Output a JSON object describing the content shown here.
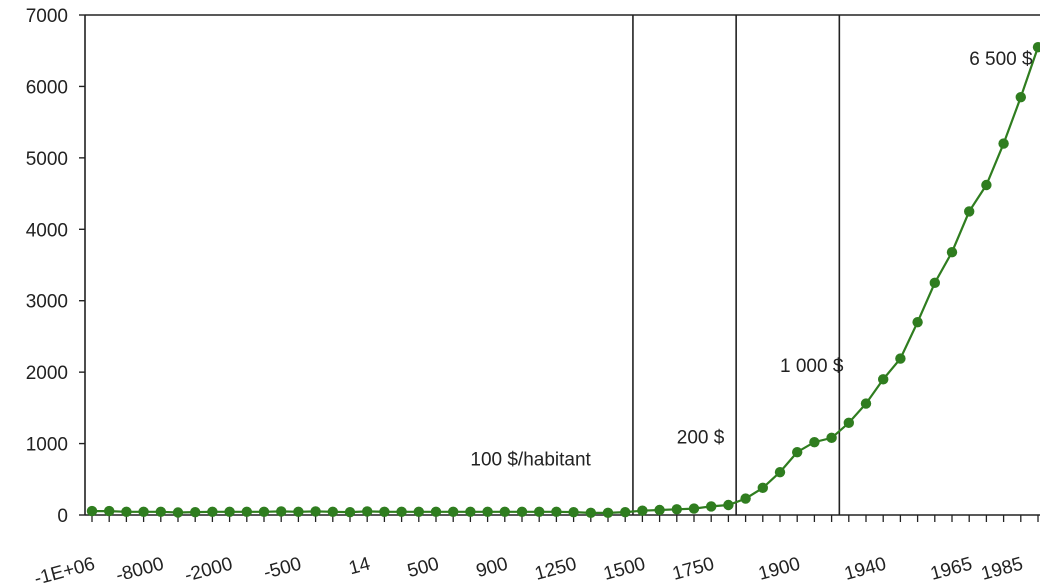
{
  "chart_data": {
    "type": "line",
    "title": "",
    "xlabel": "",
    "ylabel": "",
    "ylim": [
      0,
      7000
    ],
    "yticks": [
      0,
      1000,
      2000,
      3000,
      4000,
      5000,
      6000,
      7000
    ],
    "grid": false,
    "legend": "none",
    "color": "#2f7d1f",
    "xtick_labels": [
      "-1E+06",
      "-8000",
      "-2000",
      "-500",
      "14",
      "500",
      "900",
      "1250",
      "1500",
      "1750",
      "1900",
      "1940",
      "1965",
      "1985"
    ],
    "series": [
      {
        "values": [
          55,
          55,
          45,
          45,
          45,
          35,
          40,
          45,
          45,
          45,
          45,
          50,
          45,
          50,
          45,
          40,
          50,
          45,
          45,
          45,
          45,
          45,
          45,
          45,
          45,
          45,
          45,
          45,
          40,
          30,
          30,
          40,
          60,
          70,
          80,
          90,
          120,
          140,
          230,
          380,
          600,
          880,
          1020,
          1080,
          1290,
          1560,
          1900,
          2190,
          2700,
          3250,
          3680,
          4250,
          4620,
          5200,
          5850,
          6550
        ]
      }
    ],
    "dividers_after_index": [
      31,
      37,
      43
    ],
    "annotations": [
      {
        "text": "100 $/habitant",
        "x_index": 22,
        "y": 690
      },
      {
        "text": "200 $",
        "x_index": 34,
        "y": 1000
      },
      {
        "text": "1 000 $",
        "x_index": 40,
        "y": 2000
      },
      {
        "text": "6 500 $",
        "x_index": 51,
        "y": 6300
      }
    ]
  }
}
